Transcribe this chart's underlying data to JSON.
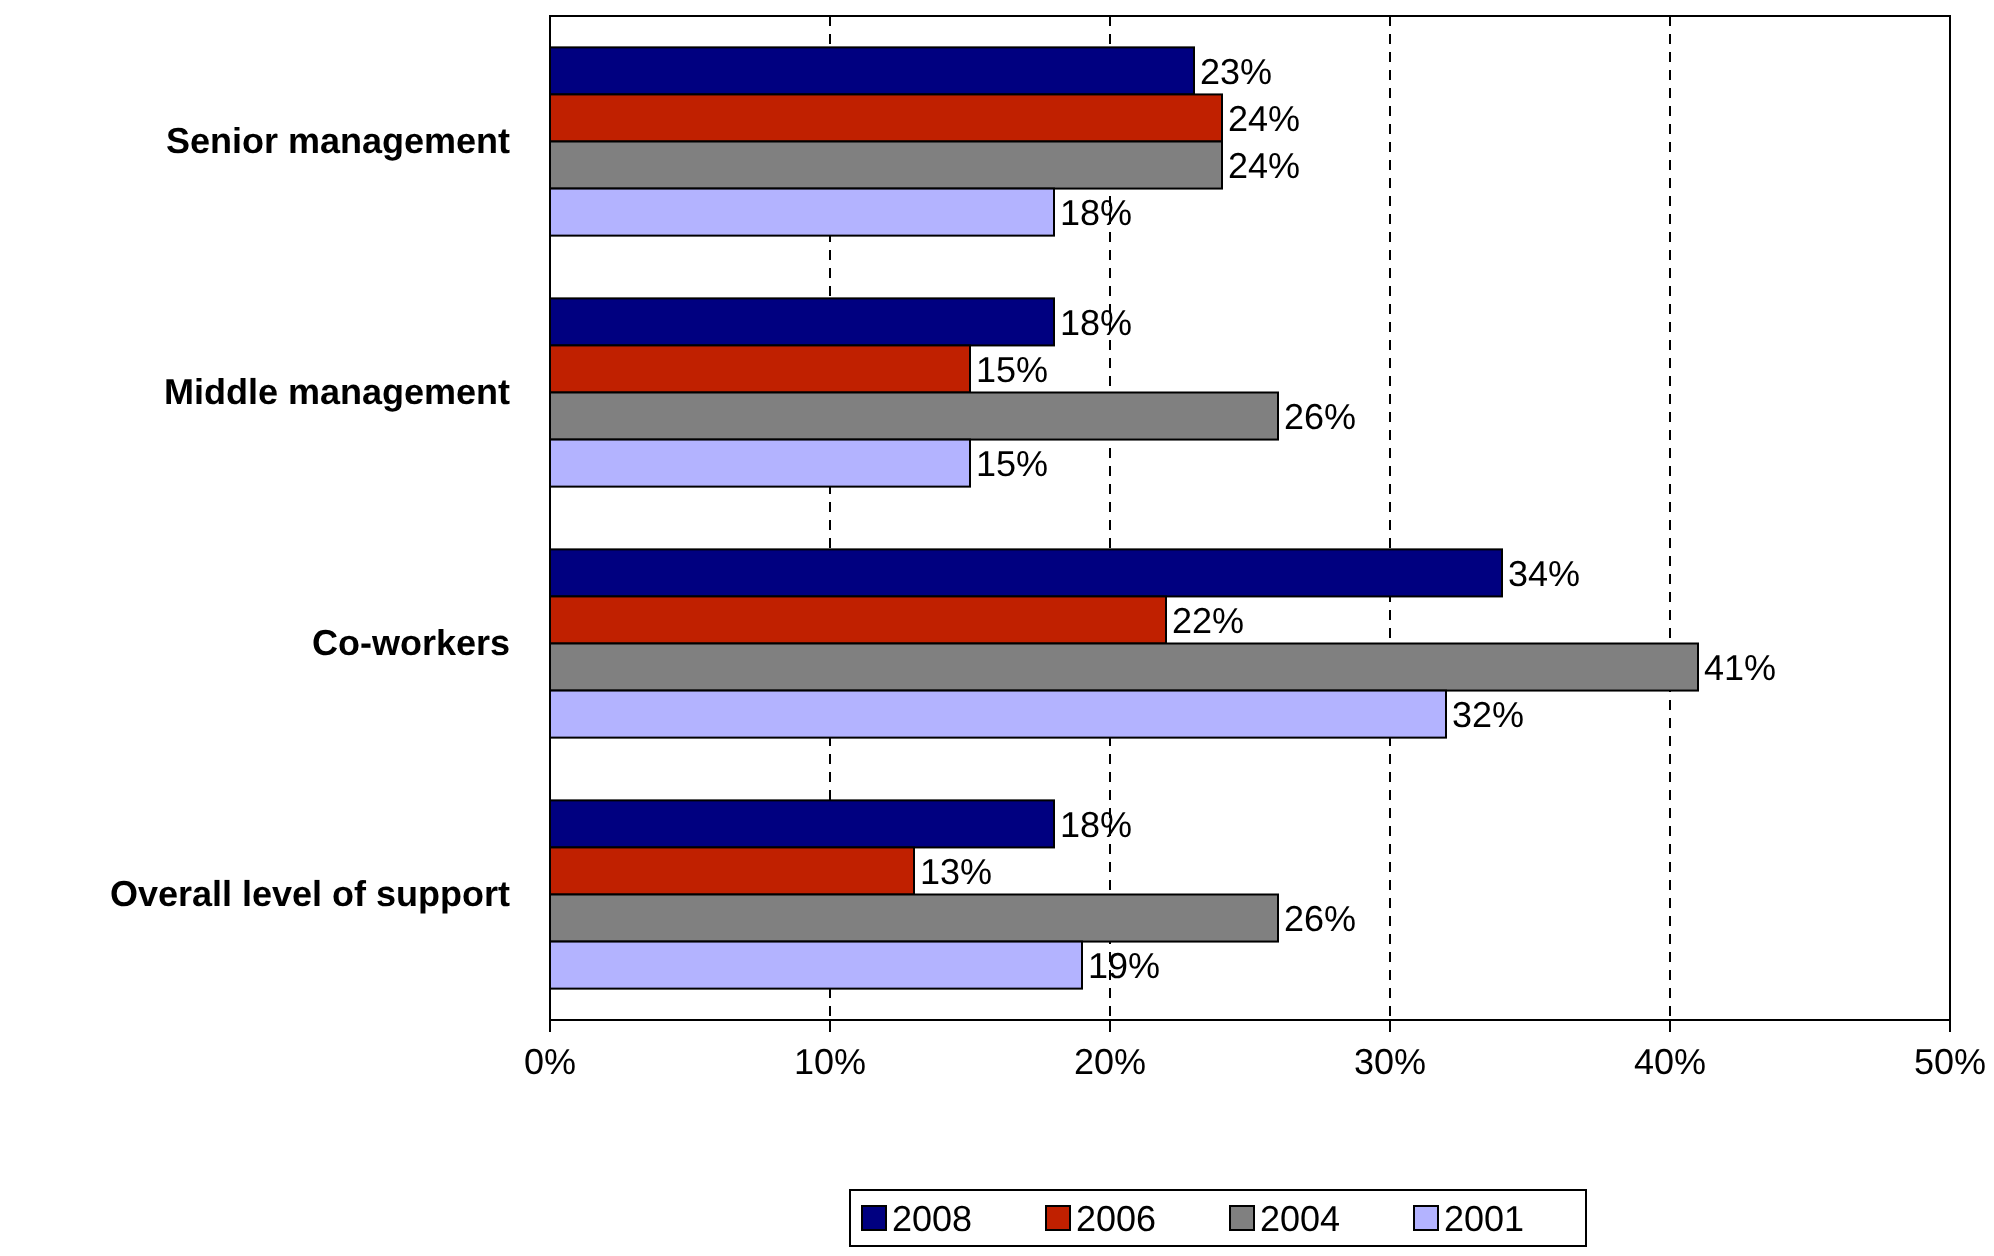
{
  "chart_data": {
    "type": "bar",
    "orientation": "horizontal",
    "categories": [
      "Senior management",
      "Middle management",
      "Co-workers",
      "Overall level of support"
    ],
    "series": [
      {
        "name": "2008",
        "color": "#000080",
        "values": [
          23,
          18,
          34,
          18
        ],
        "value_labels": [
          "23%",
          "18%",
          "34%",
          "18%"
        ]
      },
      {
        "name": "2006",
        "color": "#c02000",
        "values": [
          24,
          15,
          22,
          13
        ],
        "value_labels": [
          "24%",
          "15%",
          "22%",
          "13%"
        ]
      },
      {
        "name": "2004",
        "color": "#808080",
        "values": [
          24,
          26,
          41,
          26
        ],
        "value_labels": [
          "24%",
          "26%",
          "41%",
          "26%"
        ]
      },
      {
        "name": "2001",
        "color": "#b3b3ff",
        "values": [
          18,
          15,
          32,
          19
        ],
        "value_labels": [
          "18%",
          "15%",
          "32%",
          "19%"
        ]
      }
    ],
    "xlim": [
      0,
      50
    ],
    "xticks": [
      {
        "value": 0,
        "label": "0%"
      },
      {
        "value": 10,
        "label": "10%"
      },
      {
        "value": 20,
        "label": "20%"
      },
      {
        "value": 30,
        "label": "30%"
      },
      {
        "value": 40,
        "label": "40%"
      },
      {
        "value": 50,
        "label": "50%"
      }
    ],
    "grid": "x",
    "legend": "bottom"
  }
}
